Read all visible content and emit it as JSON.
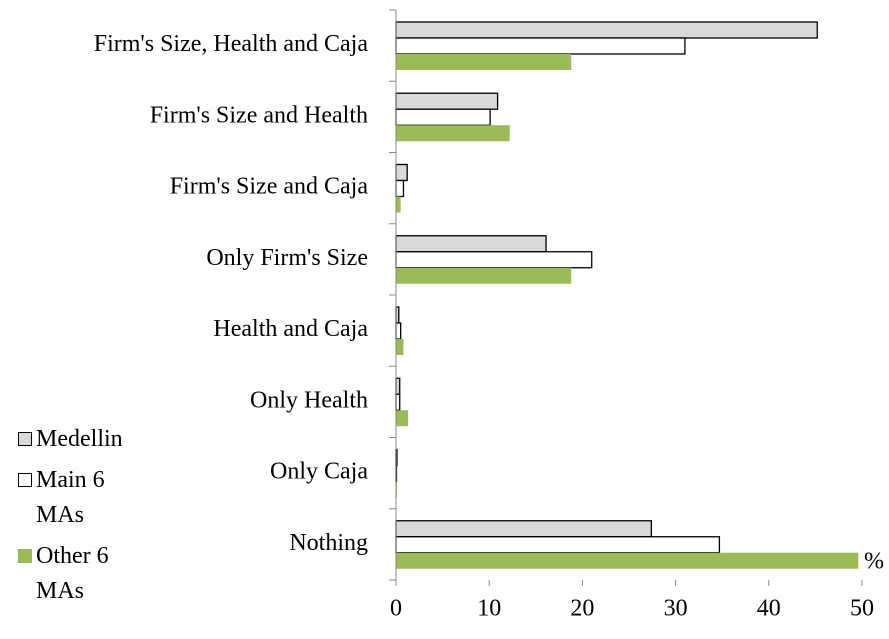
{
  "chart_data": {
    "type": "hbar",
    "x_label": "%",
    "categories": [
      "Firm's Size, Health and Caja",
      "Firm's Size and Health",
      "Firm's Size and Caja",
      "Only Firm's Size",
      "Health and Caja",
      "Only Health",
      "Only Caja",
      "Nothing"
    ],
    "series": [
      {
        "name": "Medellin",
        "color": "#d9d9d9",
        "values": [
          45.2,
          10.9,
          1.2,
          16.1,
          0.3,
          0.4,
          0.1,
          27.4
        ]
      },
      {
        "name": "Main 6 MAs",
        "color": "#ffffff",
        "values": [
          31.0,
          10.1,
          0.8,
          21.0,
          0.5,
          0.4,
          0.05,
          34.7
        ]
      },
      {
        "name": "Other 6 MAs",
        "color": "#9bbb59",
        "values": [
          18.8,
          12.2,
          0.5,
          18.8,
          0.8,
          1.3,
          0.1,
          49.6
        ]
      }
    ],
    "xlim": [
      0,
      50
    ],
    "xticks": [
      0,
      10,
      20,
      30,
      40,
      50
    ],
    "legend": "bottom-left"
  }
}
